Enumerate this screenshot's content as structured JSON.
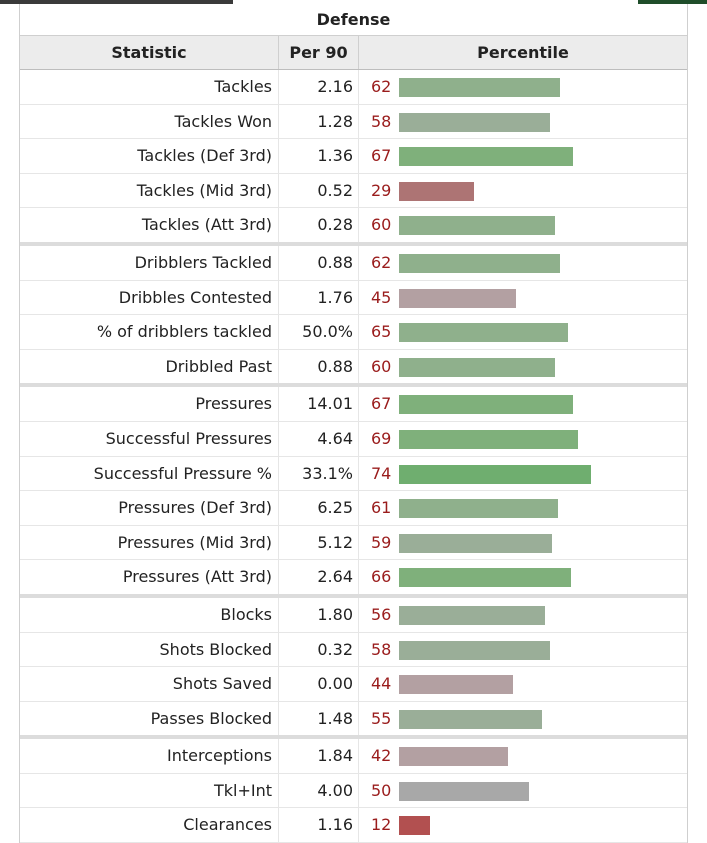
{
  "section_title": "Defense",
  "columns": {
    "statistic": "Statistic",
    "per90": "Per 90",
    "percentile": "Percentile"
  },
  "colors": {
    "high": "#72b072",
    "mid_green": "#93b48f",
    "neutral": "#a8a8a8",
    "mauve": "#b3a0a2",
    "low": "#ad7474",
    "very_low": "#b25050",
    "pct_text": "#9a1c1c"
  },
  "rows": [
    {
      "stat": "Tackles",
      "per90": "2.16",
      "pct": "62",
      "group_end": false
    },
    {
      "stat": "Tackles Won",
      "per90": "1.28",
      "pct": "58",
      "group_end": false
    },
    {
      "stat": "Tackles (Def 3rd)",
      "per90": "1.36",
      "pct": "67",
      "group_end": false
    },
    {
      "stat": "Tackles (Mid 3rd)",
      "per90": "0.52",
      "pct": "29",
      "group_end": false
    },
    {
      "stat": "Tackles (Att 3rd)",
      "per90": "0.28",
      "pct": "60",
      "group_end": true
    },
    {
      "stat": "Dribblers Tackled",
      "per90": "0.88",
      "pct": "62",
      "group_end": false
    },
    {
      "stat": "Dribbles Contested",
      "per90": "1.76",
      "pct": "45",
      "group_end": false
    },
    {
      "stat": "% of dribblers tackled",
      "per90": "50.0%",
      "pct": "65",
      "group_end": false
    },
    {
      "stat": "Dribbled Past",
      "per90": "0.88",
      "pct": "60",
      "group_end": true
    },
    {
      "stat": "Pressures",
      "per90": "14.01",
      "pct": "67",
      "group_end": false
    },
    {
      "stat": "Successful Pressures",
      "per90": "4.64",
      "pct": "69",
      "group_end": false
    },
    {
      "stat": "Successful Pressure %",
      "per90": "33.1%",
      "pct": "74",
      "group_end": false
    },
    {
      "stat": "Pressures (Def 3rd)",
      "per90": "6.25",
      "pct": "61",
      "group_end": false
    },
    {
      "stat": "Pressures (Mid 3rd)",
      "per90": "5.12",
      "pct": "59",
      "group_end": false
    },
    {
      "stat": "Pressures (Att 3rd)",
      "per90": "2.64",
      "pct": "66",
      "group_end": true
    },
    {
      "stat": "Blocks",
      "per90": "1.80",
      "pct": "56",
      "group_end": false
    },
    {
      "stat": "Shots Blocked",
      "per90": "0.32",
      "pct": "58",
      "group_end": false
    },
    {
      "stat": "Shots Saved",
      "per90": "0.00",
      "pct": "44",
      "group_end": false
    },
    {
      "stat": "Passes Blocked",
      "per90": "1.48",
      "pct": "55",
      "group_end": true
    },
    {
      "stat": "Interceptions",
      "per90": "1.84",
      "pct": "42",
      "group_end": false
    },
    {
      "stat": "Tkl+Int",
      "per90": "4.00",
      "pct": "50",
      "group_end": false
    },
    {
      "stat": "Clearances",
      "per90": "1.16",
      "pct": "12",
      "group_end": false
    }
  ]
}
